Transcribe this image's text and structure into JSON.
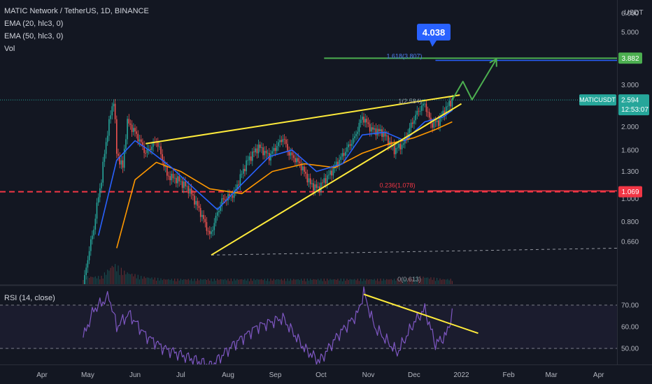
{
  "header": {
    "symbol_line": "MATIC Network / TetherUS, 1D, BINANCE",
    "indicators": [
      "EMA (20, hlc3, 0)",
      "EMA (50, hlc3, 0)",
      "Vol"
    ]
  },
  "rsi_header": "RSI (14, close)",
  "colors": {
    "background": "#131722",
    "up": "#26a69a",
    "down": "#ef5350",
    "ema20": "#2962ff",
    "ema50": "#ff9800",
    "wedge": "#ffeb3b",
    "target": "#4caf50",
    "fib_red": "#f23645",
    "rsi": "#7e57c2"
  },
  "chart_data": [
    {
      "type": "candlestick",
      "title": "MATIC Network / TetherUS, 1D, BINANCE",
      "y_unit": "USDT",
      "y_scale": "log",
      "ylim": [
        0.55,
        6.0
      ],
      "y_ticks": [
        "6.000",
        "5.000",
        "4.000",
        "3.000",
        "2.000",
        "1.600",
        "1.300",
        "1.000",
        "0.800",
        "0.660"
      ],
      "x_ticks": [
        "Apr",
        "May",
        "Jun",
        "Jul",
        "Aug",
        "Sep",
        "Oct",
        "Nov",
        "Dec",
        "2022",
        "Feb",
        "Mar",
        "Apr"
      ],
      "price_path": [
        [
          "2021-04-28",
          0.42
        ],
        [
          "2021-05-05",
          0.75
        ],
        [
          "2021-05-10",
          1.2
        ],
        [
          "2021-05-14",
          1.9
        ],
        [
          "2021-05-18",
          2.6
        ],
        [
          "2021-05-20",
          1.55
        ],
        [
          "2021-05-24",
          1.35
        ],
        [
          "2021-05-27",
          2.1
        ],
        [
          "2021-06-01",
          1.9
        ],
        [
          "2021-06-08",
          1.55
        ],
        [
          "2021-06-15",
          1.75
        ],
        [
          "2021-06-22",
          1.25
        ],
        [
          "2021-06-29",
          1.2
        ],
        [
          "2021-07-06",
          1.1
        ],
        [
          "2021-07-13",
          0.9
        ],
        [
          "2021-07-20",
          0.7
        ],
        [
          "2021-07-21",
          0.72
        ],
        [
          "2021-07-28",
          0.98
        ],
        [
          "2021-08-05",
          1.05
        ],
        [
          "2021-08-14",
          1.45
        ],
        [
          "2021-08-21",
          1.65
        ],
        [
          "2021-08-28",
          1.5
        ],
        [
          "2021-09-06",
          1.8
        ],
        [
          "2021-09-10",
          1.55
        ],
        [
          "2021-09-17",
          1.4
        ],
        [
          "2021-09-24",
          1.15
        ],
        [
          "2021-09-29",
          1.1
        ],
        [
          "2021-10-08",
          1.3
        ],
        [
          "2021-10-16",
          1.55
        ],
        [
          "2021-10-23",
          1.8
        ],
        [
          "2021-10-28",
          2.2
        ],
        [
          "2021-11-03",
          1.95
        ],
        [
          "2021-11-10",
          1.9
        ],
        [
          "2021-11-18",
          1.6
        ],
        [
          "2021-11-24",
          1.7
        ],
        [
          "2021-11-30",
          2.1
        ],
        [
          "2021-12-04",
          2.35
        ],
        [
          "2021-12-08",
          2.5
        ],
        [
          "2021-12-12",
          2.05
        ],
        [
          "2021-12-17",
          2.1
        ],
        [
          "2021-12-22",
          2.4
        ],
        [
          "2021-12-26",
          2.594
        ]
      ],
      "ema20_path": [
        [
          "2021-05-08",
          0.7
        ],
        [
          "2021-05-20",
          1.45
        ],
        [
          "2021-06-01",
          1.75
        ],
        [
          "2021-06-10",
          1.6
        ],
        [
          "2021-06-25",
          1.35
        ],
        [
          "2021-07-10",
          1.1
        ],
        [
          "2021-07-25",
          0.9
        ],
        [
          "2021-08-10",
          1.15
        ],
        [
          "2021-08-28",
          1.5
        ],
        [
          "2021-09-12",
          1.6
        ],
        [
          "2021-09-28",
          1.3
        ],
        [
          "2021-10-15",
          1.4
        ],
        [
          "2021-10-28",
          1.85
        ],
        [
          "2021-11-12",
          1.9
        ],
        [
          "2021-11-25",
          1.75
        ],
        [
          "2021-12-08",
          2.1
        ],
        [
          "2021-12-20",
          2.2
        ],
        [
          "2021-12-26",
          2.35
        ]
      ],
      "ema50_path": [
        [
          "2021-05-20",
          0.62
        ],
        [
          "2021-06-01",
          1.2
        ],
        [
          "2021-06-15",
          1.42
        ],
        [
          "2021-07-01",
          1.3
        ],
        [
          "2021-07-20",
          1.1
        ],
        [
          "2021-08-10",
          1.05
        ],
        [
          "2021-08-30",
          1.3
        ],
        [
          "2021-09-20",
          1.4
        ],
        [
          "2021-10-10",
          1.35
        ],
        [
          "2021-10-28",
          1.55
        ],
        [
          "2021-11-15",
          1.7
        ],
        [
          "2021-12-01",
          1.8
        ],
        [
          "2021-12-15",
          1.95
        ],
        [
          "2021-12-26",
          2.1
        ]
      ],
      "volume_bars": [
        [
          "2021-05-10",
          3
        ],
        [
          "2021-05-18",
          8
        ],
        [
          "2021-05-25",
          5
        ],
        [
          "2021-06-05",
          3
        ],
        [
          "2021-06-20",
          2
        ],
        [
          "2021-07-05",
          2
        ],
        [
          "2021-07-20",
          2
        ],
        [
          "2021-08-15",
          2
        ],
        [
          "2021-09-10",
          2
        ],
        [
          "2021-10-01",
          2
        ],
        [
          "2021-10-28",
          2
        ],
        [
          "2021-11-20",
          2
        ],
        [
          "2021-12-05",
          3
        ],
        [
          "2021-12-20",
          2
        ]
      ],
      "drawings": {
        "wedge_upper": [
          [
            "2021-06-08",
            1.7
          ],
          [
            "2021-12-31",
            2.72
          ]
        ],
        "wedge_lower": [
          [
            "2021-07-21",
            0.58
          ],
          [
            "2022-01-01",
            2.5
          ]
        ],
        "fib_diagonal": [
          [
            "2021-07-21",
            0.58
          ],
          [
            "2022-04-15",
            0.62
          ]
        ],
        "projection": [
          [
            "2021-12-26",
            2.594
          ],
          [
            "2022-01-02",
            3.1
          ],
          [
            "2022-01-08",
            2.6
          ],
          [
            "2022-01-24",
            3.85
          ]
        ],
        "target_line": [
          [
            "2021-10-03",
            3.882
          ],
          [
            "2022-04-30",
            3.882
          ]
        ],
        "fib_1618_line": [
          [
            "2021-12-15",
            3.8
          ],
          [
            "2022-04-30",
            3.8
          ]
        ],
        "fib_0236_line": [
          [
            "2021-12-10",
            1.078
          ],
          [
            "2022-04-30",
            1.078
          ]
        ],
        "support_line": [
          [
            "2021-03-20",
            1.069
          ],
          [
            "2022-04-30",
            1.069
          ]
        ],
        "last_price_line": [
          [
            "2021-03-20",
            2.594
          ],
          [
            "2022-04-30",
            2.594
          ]
        ]
      },
      "annotations": {
        "callout": "4.038",
        "fib_1618": "1.618(3.807)",
        "fib_1": "1(2.584)",
        "fib_0236": "0.236(1.078)",
        "fib_0": "0(0.613)"
      },
      "price_labels": {
        "target": "3.882",
        "symbol": "MATICUSDT",
        "last": "2.594",
        "countdown": "12:53:07",
        "support": "1.069"
      }
    },
    {
      "type": "line",
      "title": "RSI (14, close)",
      "ylim": [
        44,
        76
      ],
      "y_ticks": [
        "70.00",
        "60.00",
        "50.00"
      ],
      "guide_levels": [
        70,
        50
      ],
      "values_path": [
        [
          "2021-04-28",
          55
        ],
        [
          "2021-05-05",
          68
        ],
        [
          "2021-05-15",
          74
        ],
        [
          "2021-05-20",
          60
        ],
        [
          "2021-05-28",
          66
        ],
        [
          "2021-06-08",
          56
        ],
        [
          "2021-06-20",
          50
        ],
        [
          "2021-07-05",
          46
        ],
        [
          "2021-07-21",
          42
        ],
        [
          "2021-08-05",
          52
        ],
        [
          "2021-08-20",
          60
        ],
        [
          "2021-09-06",
          64
        ],
        [
          "2021-09-20",
          50
        ],
        [
          "2021-09-30",
          44
        ],
        [
          "2021-10-12",
          56
        ],
        [
          "2021-10-25",
          66
        ],
        [
          "2021-10-29",
          76
        ],
        [
          "2021-11-05",
          60
        ],
        [
          "2021-11-20",
          48
        ],
        [
          "2021-12-01",
          62
        ],
        [
          "2021-12-08",
          68
        ],
        [
          "2021-12-15",
          52
        ],
        [
          "2021-12-22",
          56
        ],
        [
          "2021-12-26",
          66
        ]
      ],
      "trendline": [
        [
          "2021-10-29",
          75
        ],
        [
          "2022-01-12",
          57
        ]
      ]
    }
  ]
}
